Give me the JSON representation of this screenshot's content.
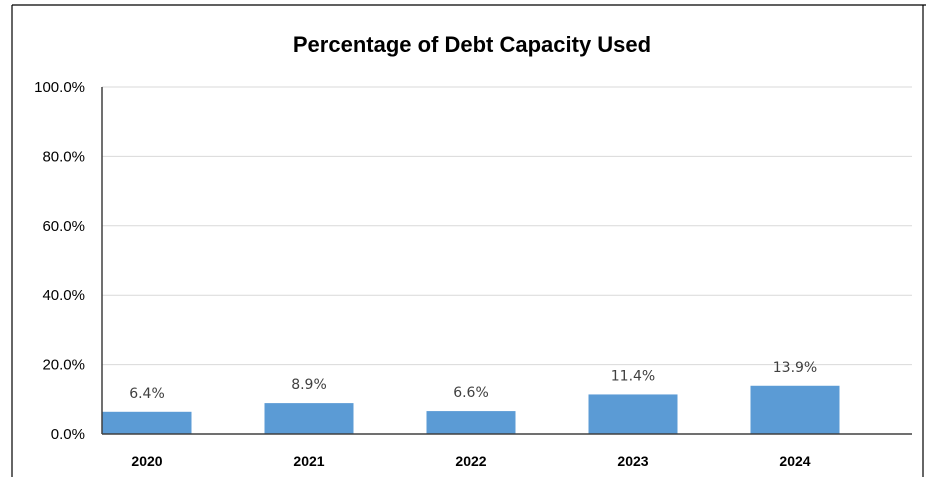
{
  "chart_data": {
    "type": "bar",
    "title": "Percentage of Debt Capacity Used",
    "categories": [
      "2020",
      "2021",
      "2022",
      "2023",
      "2024"
    ],
    "values": [
      6.4,
      8.9,
      6.6,
      11.4,
      13.9
    ],
    "data_labels": [
      "6.4%",
      "8.9%",
      "6.6%",
      "11.4%",
      "13.9%"
    ],
    "ylim": [
      0,
      100
    ],
    "yticks": [
      0,
      20,
      40,
      60,
      80,
      100
    ],
    "ytick_labels": [
      "0.0%",
      "20.0%",
      "40.0%",
      "60.0%",
      "80.0%",
      "100.0%"
    ],
    "grid": true,
    "legend": "none",
    "bar_color": "#5b9bd5"
  }
}
